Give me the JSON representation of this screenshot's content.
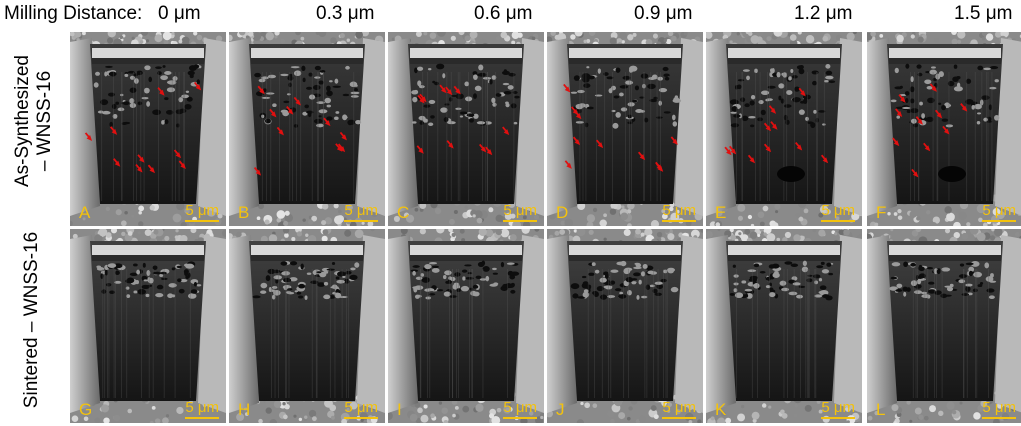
{
  "header": {
    "prefix": "Milling Distance:",
    "distances": [
      "0 μm",
      "0.3 μm",
      "0.6 μm",
      "0.9 μm",
      "1.2 μm",
      "1.5 μm"
    ]
  },
  "rows": [
    {
      "line1": "As-Synthesized",
      "line2": "– WNSS-16",
      "panels": [
        "A",
        "B",
        "C",
        "D",
        "E",
        "F"
      ]
    },
    {
      "line1": "Sintered – WNSS-16",
      "line2": "",
      "panels": [
        "G",
        "H",
        "I",
        "J",
        "K",
        "L"
      ]
    }
  ],
  "scale_bar": "5 μm",
  "colors": {
    "label": "#f3c20d",
    "arrow": "#e01010"
  }
}
